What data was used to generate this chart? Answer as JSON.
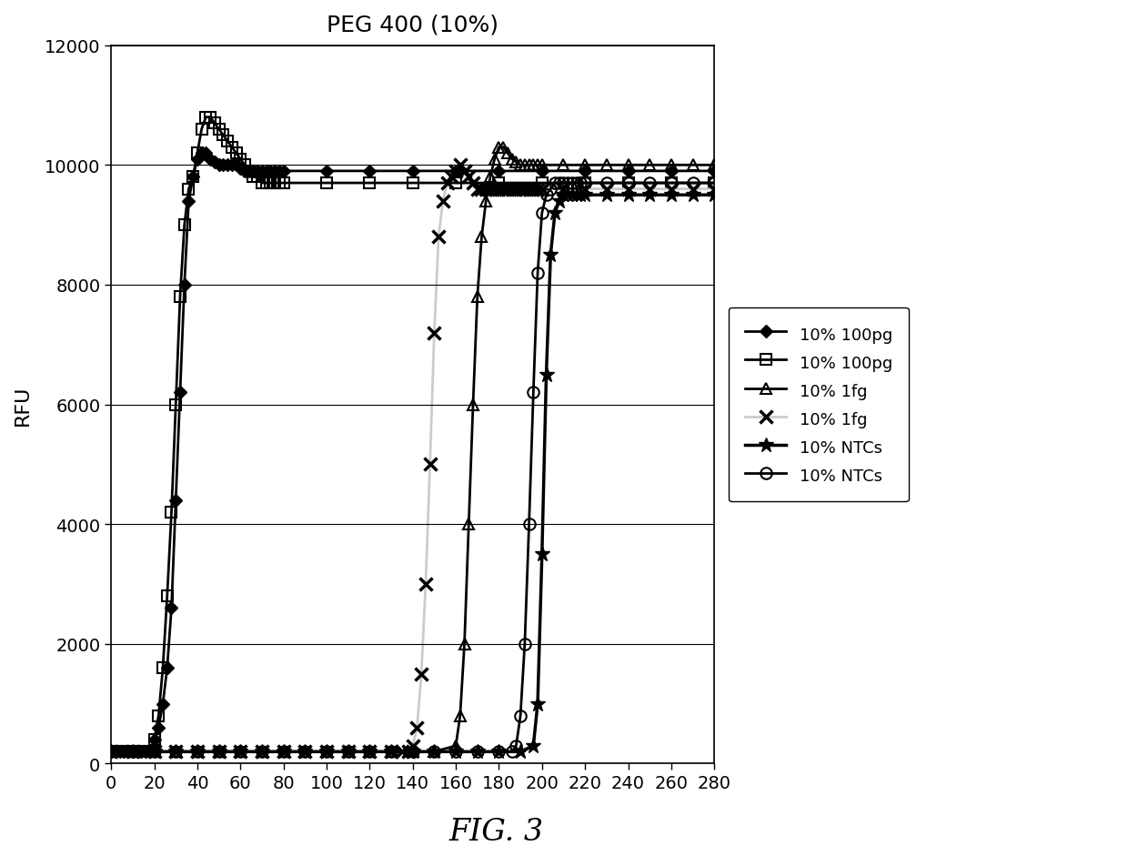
{
  "title": "PEG 400 (10%)",
  "ylabel": "RFU",
  "fig_caption": "FIG. 3",
  "xlim": [
    0,
    280
  ],
  "ylim": [
    0,
    12000
  ],
  "xticks": [
    0,
    20,
    40,
    60,
    80,
    100,
    120,
    140,
    160,
    180,
    200,
    220,
    240,
    260,
    280
  ],
  "yticks": [
    0,
    2000,
    4000,
    6000,
    8000,
    10000,
    12000
  ],
  "series": [
    {
      "label": "10% 100pg",
      "marker": "D",
      "line_color": "black",
      "ms": 7,
      "lw": 2,
      "mfc": "black",
      "mec": "black",
      "mew": 1.0,
      "x": [
        0,
        2,
        4,
        6,
        8,
        10,
        12,
        14,
        16,
        18,
        20,
        22,
        24,
        26,
        28,
        30,
        32,
        34,
        36,
        38,
        40,
        42,
        44,
        46,
        48,
        50,
        52,
        54,
        56,
        58,
        60,
        62,
        64,
        66,
        68,
        70,
        72,
        74,
        76,
        78,
        80,
        100,
        120,
        140,
        160,
        180,
        200,
        220,
        240,
        260,
        280
      ],
      "y": [
        200,
        200,
        200,
        200,
        200,
        200,
        200,
        200,
        200,
        200,
        400,
        600,
        1000,
        1600,
        2600,
        4400,
        6200,
        8000,
        9400,
        9800,
        10100,
        10200,
        10200,
        10100,
        10050,
        10000,
        10000,
        10000,
        10000,
        10000,
        9950,
        9900,
        9900,
        9900,
        9900,
        9900,
        9900,
        9900,
        9900,
        9900,
        9900,
        9900,
        9900,
        9900,
        9900,
        9900,
        9900,
        9900,
        9900,
        9900,
        9900
      ]
    },
    {
      "label": "10% 100pg",
      "marker": "s",
      "line_color": "black",
      "ms": 9,
      "lw": 2,
      "mfc": "none",
      "mec": "black",
      "mew": 1.5,
      "x": [
        0,
        2,
        4,
        6,
        8,
        10,
        12,
        14,
        16,
        18,
        20,
        22,
        24,
        26,
        28,
        30,
        32,
        34,
        36,
        38,
        40,
        42,
        44,
        46,
        48,
        50,
        52,
        54,
        56,
        58,
        60,
        62,
        64,
        66,
        68,
        70,
        72,
        74,
        76,
        78,
        80,
        100,
        120,
        140,
        160,
        180,
        200,
        220,
        240,
        260,
        280
      ],
      "y": [
        200,
        200,
        200,
        200,
        200,
        200,
        200,
        200,
        200,
        200,
        400,
        800,
        1600,
        2800,
        4200,
        6000,
        7800,
        9000,
        9600,
        9800,
        10200,
        10600,
        10800,
        10800,
        10700,
        10600,
        10500,
        10400,
        10300,
        10200,
        10100,
        10000,
        9900,
        9800,
        9800,
        9700,
        9700,
        9700,
        9700,
        9700,
        9700,
        9700,
        9700,
        9700,
        9700,
        9700,
        9700,
        9700,
        9700,
        9700,
        9700
      ]
    },
    {
      "label": "10% 1fg",
      "marker": "^",
      "line_color": "black",
      "ms": 9,
      "lw": 2,
      "mfc": "none",
      "mec": "black",
      "mew": 1.5,
      "x": [
        0,
        10,
        20,
        30,
        40,
        50,
        60,
        70,
        80,
        90,
        100,
        110,
        120,
        130,
        140,
        150,
        160,
        162,
        164,
        166,
        168,
        170,
        172,
        174,
        176,
        178,
        180,
        182,
        184,
        186,
        188,
        190,
        192,
        194,
        196,
        198,
        200,
        210,
        220,
        230,
        240,
        250,
        260,
        270,
        280
      ],
      "y": [
        200,
        200,
        200,
        200,
        200,
        200,
        200,
        200,
        200,
        200,
        200,
        200,
        200,
        200,
        200,
        200,
        300,
        800,
        2000,
        4000,
        6000,
        7800,
        8800,
        9400,
        9800,
        10100,
        10300,
        10300,
        10200,
        10100,
        10050,
        10000,
        10000,
        10000,
        10000,
        10000,
        10000,
        10000,
        10000,
        10000,
        10000,
        10000,
        10000,
        10000,
        10000
      ]
    },
    {
      "label": "10% 1fg",
      "marker": "x",
      "line_color": "#cccccc",
      "ms": 10,
      "lw": 2,
      "mfc": "none",
      "mec": "black",
      "mew": 2.5,
      "x": [
        0,
        10,
        20,
        30,
        40,
        50,
        60,
        70,
        80,
        90,
        100,
        110,
        120,
        130,
        135,
        138,
        140,
        142,
        144,
        146,
        148,
        150,
        152,
        154,
        156,
        158,
        160,
        162,
        164,
        166,
        168,
        170,
        172,
        174,
        176,
        178,
        180,
        182,
        184,
        186,
        188,
        190,
        192,
        194,
        196,
        198,
        200,
        210,
        220,
        230,
        240,
        250,
        260,
        270,
        280
      ],
      "y": [
        200,
        200,
        200,
        200,
        200,
        200,
        200,
        200,
        200,
        200,
        200,
        200,
        200,
        200,
        200,
        200,
        300,
        600,
        1500,
        3000,
        5000,
        7200,
        8800,
        9400,
        9700,
        9800,
        9900,
        10000,
        9900,
        9800,
        9700,
        9600,
        9600,
        9600,
        9600,
        9600,
        9600,
        9600,
        9600,
        9600,
        9600,
        9600,
        9600,
        9600,
        9600,
        9600,
        9600,
        9600,
        9600,
        9600,
        9600,
        9600,
        9600,
        9600,
        9600
      ]
    },
    {
      "label": "10% NTCs",
      "marker": "*",
      "line_color": "black",
      "ms": 12,
      "lw": 2.5,
      "mfc": "black",
      "mec": "black",
      "mew": 1.0,
      "x": [
        0,
        10,
        20,
        30,
        40,
        50,
        60,
        70,
        80,
        90,
        100,
        110,
        120,
        130,
        140,
        150,
        160,
        170,
        180,
        190,
        196,
        198,
        200,
        202,
        204,
        206,
        208,
        210,
        212,
        214,
        216,
        218,
        220,
        230,
        240,
        250,
        260,
        270,
        280
      ],
      "y": [
        200,
        200,
        200,
        200,
        200,
        200,
        200,
        200,
        200,
        200,
        200,
        200,
        200,
        200,
        200,
        200,
        200,
        200,
        200,
        200,
        300,
        1000,
        3500,
        6500,
        8500,
        9200,
        9400,
        9500,
        9500,
        9500,
        9500,
        9500,
        9500,
        9500,
        9500,
        9500,
        9500,
        9500,
        9500
      ]
    },
    {
      "label": "10% NTCs",
      "marker": "o",
      "line_color": "black",
      "ms": 9,
      "lw": 2,
      "mfc": "none",
      "mec": "black",
      "mew": 1.5,
      "x": [
        0,
        10,
        20,
        30,
        40,
        50,
        60,
        70,
        80,
        90,
        100,
        110,
        120,
        130,
        140,
        150,
        160,
        170,
        180,
        186,
        188,
        190,
        192,
        194,
        196,
        198,
        200,
        202,
        204,
        206,
        208,
        210,
        212,
        214,
        216,
        218,
        220,
        230,
        240,
        250,
        260,
        270,
        280
      ],
      "y": [
        200,
        200,
        200,
        200,
        200,
        200,
        200,
        200,
        200,
        200,
        200,
        200,
        200,
        200,
        200,
        200,
        200,
        200,
        200,
        200,
        300,
        800,
        2000,
        4000,
        6200,
        8200,
        9200,
        9500,
        9600,
        9700,
        9700,
        9700,
        9700,
        9700,
        9700,
        9700,
        9700,
        9700,
        9700,
        9700,
        9700,
        9700,
        9700
      ]
    }
  ]
}
